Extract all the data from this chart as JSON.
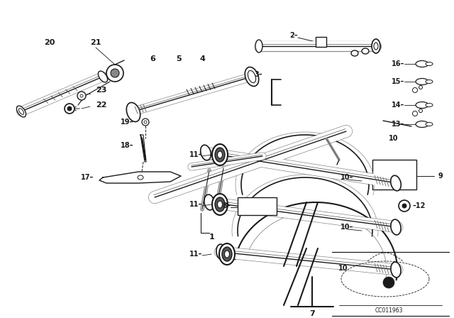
{
  "bg_color": "#ffffff",
  "line_color": "#1a1a1a",
  "diagram_code": "CC011963",
  "fig_width": 6.4,
  "fig_height": 4.48,
  "dpi": 100
}
